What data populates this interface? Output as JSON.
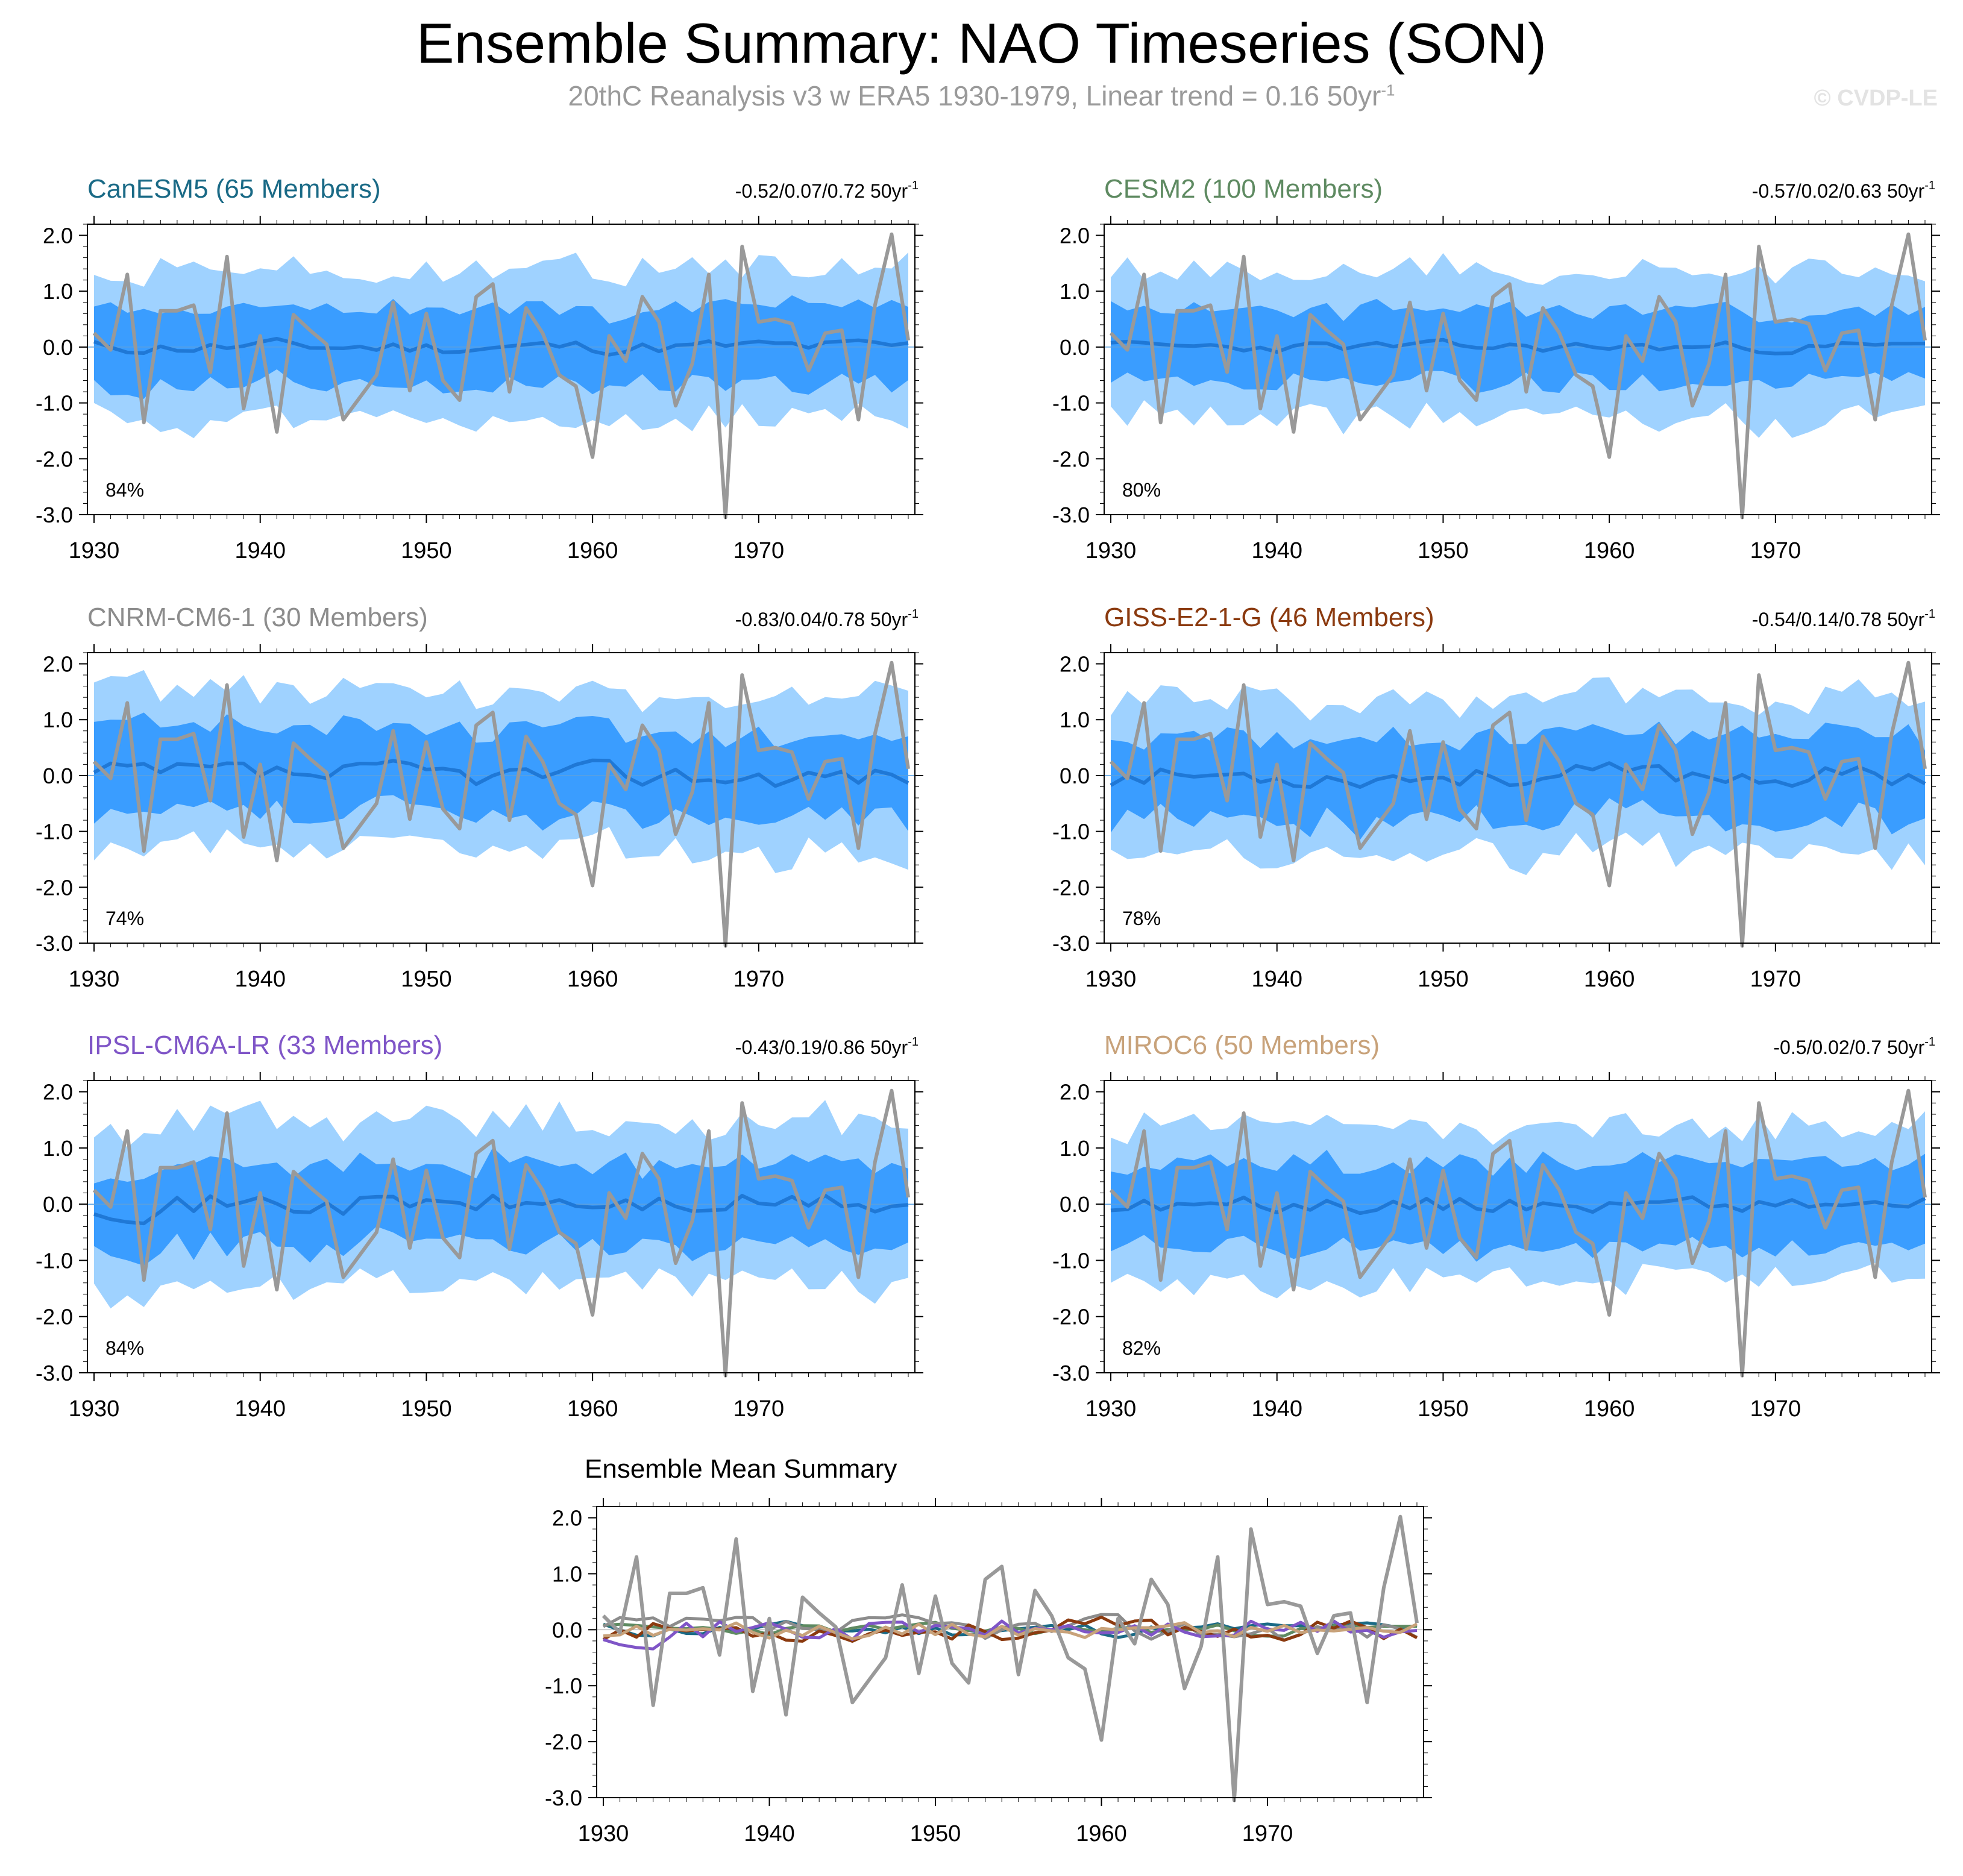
{
  "title": "Ensemble Summary: NAO Timeseries (SON)",
  "subtitle": {
    "prefix": "20thC Reanalysis v3 w ERA5 1930-1979, Linear trend = 0.16 50yr",
    "superscript": "-1"
  },
  "watermark": "© CVDP-LE",
  "colors": {
    "outer_band": "#9fd2ff",
    "inner_band": "#3a9dff",
    "ensemble_mean": "#1f78d6",
    "observed": "#999999"
  },
  "chart_data": [
    {
      "type": "line",
      "id": "panel-canesm5",
      "title": "CanESM5 (65 Members)",
      "title_color": "#1a6a86",
      "trend_text": "-0.52/0.07/0.72 50yr",
      "trend_superscript": "-1",
      "percent_label": "84%",
      "xlim": [
        1929.6,
        1979.4
      ],
      "ylim": [
        -3.0,
        2.2
      ],
      "xticks": [
        1930,
        1940,
        1950,
        1960,
        1970
      ],
      "yticks": [
        2.0,
        1.0,
        0.0,
        -1.0,
        -2.0,
        -3.0
      ],
      "ytick_labels": [
        "2.0",
        "1.0",
        "0.0",
        "-1.0",
        "-2.0",
        "-3.0"
      ],
      "spread_seed": 11,
      "spread_outer": 1.4,
      "spread_inner": 0.7,
      "mean_amp": 0.12
    },
    {
      "type": "line",
      "id": "panel-cesm2",
      "title": "CESM2 (100 Members)",
      "title_color": "#5e8a61",
      "trend_text": "-0.57/0.02/0.63 50yr",
      "trend_superscript": "-1",
      "percent_label": "80%",
      "xlim": [
        1929.6,
        1979.4
      ],
      "ylim": [
        -3.0,
        2.2
      ],
      "xticks": [
        1930,
        1940,
        1950,
        1960,
        1970
      ],
      "yticks": [
        2.0,
        1.0,
        0.0,
        -1.0,
        -2.0,
        -3.0
      ],
      "ytick_labels": [
        "2.0",
        "1.0",
        "0.0",
        "-1.0",
        "-2.0",
        "-3.0"
      ],
      "spread_seed": 23,
      "spread_outer": 1.35,
      "spread_inner": 0.65,
      "mean_amp": 0.09
    },
    {
      "type": "line",
      "id": "panel-cnrm",
      "title": "CNRM-CM6-1 (30 Members)",
      "title_color": "#8c8c8c",
      "trend_text": "-0.83/0.04/0.78 50yr",
      "trend_superscript": "-1",
      "percent_label": "74%",
      "xlim": [
        1929.6,
        1979.4
      ],
      "ylim": [
        -3.0,
        2.2
      ],
      "xticks": [
        1930,
        1940,
        1950,
        1960,
        1970
      ],
      "yticks": [
        2.0,
        1.0,
        0.0,
        -1.0,
        -2.0,
        -3.0
      ],
      "ytick_labels": [
        "2.0",
        "1.0",
        "0.0",
        "-1.0",
        "-2.0",
        "-3.0"
      ],
      "spread_seed": 37,
      "spread_outer": 1.45,
      "spread_inner": 0.75,
      "mean_amp": 0.2
    },
    {
      "type": "line",
      "id": "panel-giss",
      "title": "GISS-E2-1-G (46 Members)",
      "title_color": "#8b3a0f",
      "trend_text": "-0.54/0.14/0.78 50yr",
      "trend_superscript": "-1",
      "percent_label": "78%",
      "xlim": [
        1929.6,
        1979.4
      ],
      "ylim": [
        -3.0,
        2.2
      ],
      "xticks": [
        1930,
        1940,
        1950,
        1960,
        1970
      ],
      "yticks": [
        2.0,
        1.0,
        0.0,
        -1.0,
        -2.0,
        -3.0
      ],
      "ytick_labels": [
        "2.0",
        "1.0",
        "0.0",
        "-1.0",
        "-2.0",
        "-3.0"
      ],
      "spread_seed": 53,
      "spread_outer": 1.4,
      "spread_inner": 0.75,
      "mean_amp": 0.18
    },
    {
      "type": "line",
      "id": "panel-ipsl",
      "title": "IPSL-CM6A-LR (33 Members)",
      "title_color": "#7f55c7",
      "trend_text": "-0.43/0.19/0.86 50yr",
      "trend_superscript": "-1",
      "percent_label": "84%",
      "xlim": [
        1929.6,
        1979.4
      ],
      "ylim": [
        -3.0,
        2.2
      ],
      "xticks": [
        1930,
        1940,
        1950,
        1960,
        1970
      ],
      "yticks": [
        2.0,
        1.0,
        0.0,
        -1.0,
        -2.0,
        -3.0
      ],
      "ytick_labels": [
        "2.0",
        "1.0",
        "0.0",
        "-1.0",
        "-2.0",
        "-3.0"
      ],
      "spread_seed": 71,
      "spread_outer": 1.5,
      "spread_inner": 0.7,
      "mean_amp": 0.2
    },
    {
      "type": "line",
      "id": "panel-miroc6",
      "title": "MIROC6 (50 Members)",
      "title_color": "#c8a27a",
      "trend_text": "-0.5/0.02/0.7 50yr",
      "trend_superscript": "-1",
      "percent_label": "82%",
      "xlim": [
        1929.6,
        1979.4
      ],
      "ylim": [
        -3.0,
        2.2
      ],
      "xticks": [
        1930,
        1940,
        1950,
        1960,
        1970
      ],
      "yticks": [
        2.0,
        1.0,
        0.0,
        -1.0,
        -2.0,
        -3.0
      ],
      "ytick_labels": [
        "2.0",
        "1.0",
        "0.0",
        "-1.0",
        "-2.0",
        "-3.0"
      ],
      "spread_seed": 89,
      "spread_outer": 1.4,
      "spread_inner": 0.75,
      "mean_amp": 0.14
    },
    {
      "type": "line",
      "id": "panel-ensemble-mean",
      "title": "Ensemble Mean Summary",
      "title_color": "#000000",
      "xlim": [
        1929.6,
        1979.4
      ],
      "ylim": [
        -3.0,
        2.2
      ],
      "xticks": [
        1930,
        1940,
        1950,
        1960,
        1970
      ],
      "yticks": [
        2.0,
        1.0,
        0.0,
        -1.0,
        -2.0,
        -3.0
      ],
      "ytick_labels": [
        "2.0",
        "1.0",
        "0.0",
        "-1.0",
        "-2.0",
        "-3.0"
      ],
      "series_colors": [
        "#1a6a86",
        "#5e8a61",
        "#8c8c8c",
        "#8b3a0f",
        "#7f55c7",
        "#c8a27a"
      ],
      "series_names": [
        "CanESM5",
        "CESM2",
        "CNRM-CM6-1",
        "GISS-E2-1-G",
        "IPSL-CM6A-LR",
        "MIROC6"
      ],
      "series_seeds": [
        11,
        23,
        37,
        53,
        71,
        89
      ],
      "series_amp": [
        0.12,
        0.09,
        0.2,
        0.18,
        0.2,
        0.14
      ]
    }
  ],
  "observed": {
    "name": "20thC Reanalysis v3 w ERA5",
    "years": [
      1930,
      1931,
      1932,
      1933,
      1934,
      1935,
      1936,
      1937,
      1938,
      1939,
      1940,
      1941,
      1942,
      1943,
      1944,
      1945,
      1946,
      1947,
      1948,
      1949,
      1950,
      1951,
      1952,
      1953,
      1954,
      1955,
      1956,
      1957,
      1958,
      1959,
      1960,
      1961,
      1962,
      1963,
      1964,
      1965,
      1966,
      1967,
      1968,
      1969,
      1970,
      1971,
      1972,
      1973,
      1974,
      1975,
      1976,
      1977,
      1978,
      1979
    ],
    "values": [
      0.25,
      -0.05,
      1.3,
      -1.35,
      0.65,
      0.65,
      0.75,
      -0.45,
      1.62,
      -1.1,
      0.2,
      -1.52,
      0.58,
      0.3,
      0.05,
      -1.3,
      -0.9,
      -0.5,
      0.8,
      -0.78,
      0.6,
      -0.6,
      -0.95,
      0.9,
      1.13,
      -0.8,
      0.7,
      0.25,
      -0.5,
      -0.7,
      -1.97,
      0.2,
      -0.25,
      0.9,
      0.45,
      -1.05,
      -0.3,
      1.3,
      -3.05,
      1.8,
      0.45,
      0.5,
      0.42,
      -0.42,
      0.25,
      0.3,
      -1.3,
      0.75,
      2.02,
      0.12
    ]
  }
}
